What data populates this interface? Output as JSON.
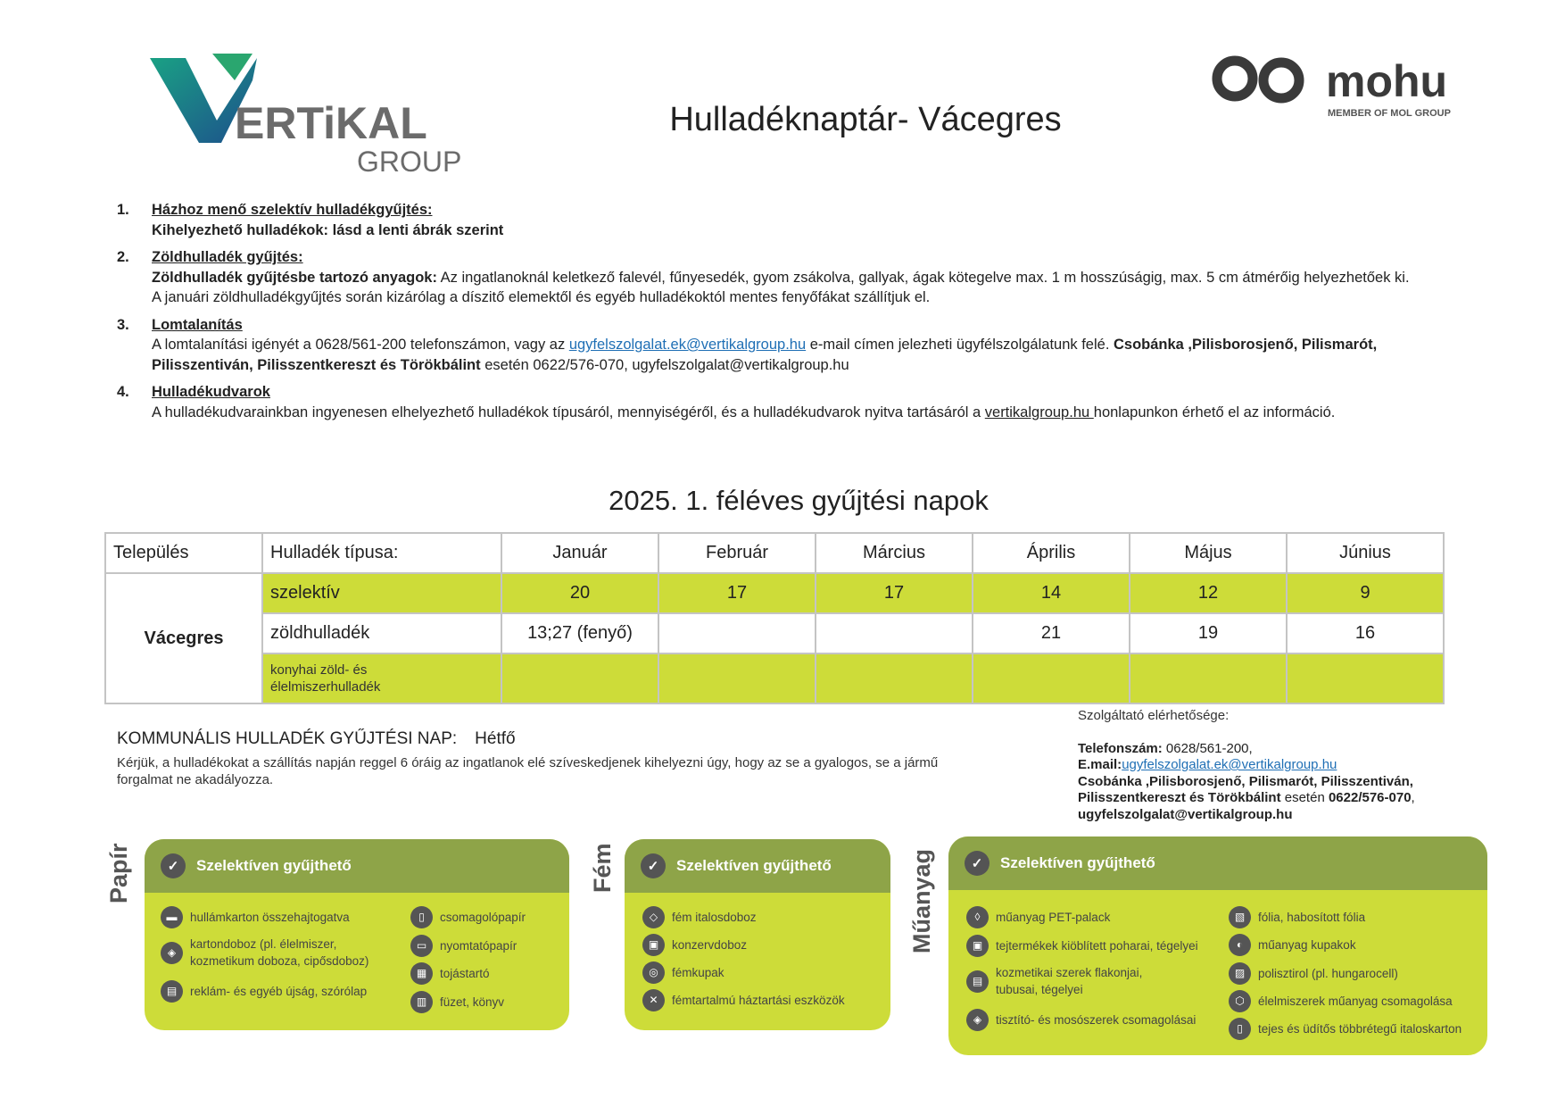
{
  "logos": {
    "vertikal": "VERTiKAL GROUP",
    "mohu": "mohu",
    "mohu_sub": "MEMBER OF MOL GROUP"
  },
  "title": "Hulladéknaptár- Vácegres",
  "list": [
    {
      "num": "1.",
      "heading": "Házhoz menő szelektív hulladékgyűjtés:",
      "line1": "Kihelyezhető hulladékok: lásd a lenti ábrák szerint"
    },
    {
      "num": "2.",
      "heading": "Zöldhulladék gyűjtés:",
      "bold": "Zöldhulladék gyűjtésbe tartozó anyagok:",
      "text": " Az ingatlanoknál keletkező falevél, fűnyesedék, gyom zsákolva, gallyak, ágak kötegelve max. 1 m hosszúságig, max. 5 cm átmérőig helyezhetőek ki.",
      "line2": "A januári zöldhulladékgyűjtés során kizárólag a díszitő elemektől és egyéb hulladékoktól mentes fenyőfákat szállítjuk el."
    },
    {
      "num": "3.",
      "heading": "Lomtalanítás",
      "pre": "A lomtalanítási igényét a 0628/561-200 telefonszámon, vagy az ",
      "email": "ugyfelszolgalat.ek@vertikalgroup.hu",
      "mid": " e-mail címen jelezheti ügyfélszolgálatunk felé. ",
      "bold": "Csobánka ,Pilisborosjenő, Pilismarót, Pilisszentiván, Pilisszentkereszt és Törökbálint",
      "post": " esetén 0622/576-070, ugyfelszolgalat@vertikalgroup.hu"
    },
    {
      "num": "4.",
      "heading": "Hulladékudvarok",
      "pre": "A hulladékudvarainkban ingyenesen elhelyezhető hulladékok típusáról, mennyiségéről, és a hulladékudvarok nyitva tartásáról a ",
      "link": "vertikalgroup.hu ",
      "post": "honlapunkon érhető el az információ."
    }
  ],
  "schedule": {
    "heading": "2025. 1.  féléves gyűjtési napok",
    "headers": [
      "Település",
      "Hulladék típusa:",
      "Január",
      "Február",
      "Március",
      "Április",
      "Május",
      "Június"
    ],
    "town": "Vácegres",
    "rows": [
      {
        "type": "szelektív",
        "values": [
          "20",
          "17",
          "17",
          "14",
          "12",
          "9"
        ]
      },
      {
        "type": "zöldhulladék",
        "values": [
          "13;27 (fenyő)",
          "",
          "",
          "21",
          "19",
          "16"
        ]
      },
      {
        "type": "konyhai zöld- és élelmiszerhulladék",
        "values": [
          "",
          "",
          "",
          "",
          "",
          ""
        ]
      }
    ]
  },
  "communal": {
    "label": "KOMMUNÁLIS HULLADÉK GYŰJTÉSI NAP:",
    "day": "Hétfő",
    "note": "Kérjük, a hulladékokat a szállítás napján reggel 6 óráig az ingatlanok elé szíveskedjenek kihelyezni úgy, hogy az se a gyalogos, se a jármű forgalmat ne akadályozza."
  },
  "contact": {
    "title": "Szolgáltató elérhetősége:",
    "phone_label": "Telefonszám:",
    "phone": " 0628/561-200,",
    "email_label": "E.mail:",
    "email": "ugyfelszolgalat.ek@vertikalgroup.hu",
    "towns": "Csobánka ,Pilisborosjenő, Pilismarót, Pilisszentiván, Pilisszentkereszt és Törökbálint",
    "esetén": " esetén ",
    "phone2": "0622/576-070",
    "comma": ",",
    "email2": "ugyfelszolgalat@vertikalgroup.hu"
  },
  "cards": {
    "header": "Szelektíven gyűjthető",
    "papir": {
      "label": "Papír",
      "left": [
        "hullámkarton összehajtogatva",
        "kartondoboz (pl. élelmiszer, kozmetikum doboza, cipősdoboz)",
        "reklám- és egyéb újság, szórólap"
      ],
      "right": [
        "csomagolópapír",
        "nyomtatópapír",
        "tojástartó",
        "füzet, könyv"
      ]
    },
    "fem": {
      "label": "Fém",
      "items": [
        "fém italosdoboz",
        "konzervdoboz",
        "fémkupak",
        "fémtartalmú háztartási eszközök"
      ]
    },
    "muanyag": {
      "label": "Műanyag",
      "left": [
        "műanyag PET-palack",
        "tejtermékek kiöblített poharai, tégelyei",
        "kozmetikai szerek flakonjai, tubusai, tégelyei",
        "tisztító- és mosószerek csomagolásai"
      ],
      "right": [
        "fólia, habosított fólia",
        "műanyag kupakok",
        "polisztirol (pl. hungarocell)",
        "élelmiszerek műanyag csomagolása",
        "tejes és üdítős többrétegű italoskarton"
      ]
    }
  },
  "colors": {
    "light_green": "#cddc39",
    "dark_green": "#8ea448",
    "icon_gray": "#555555",
    "link": "#1f6fb5"
  }
}
